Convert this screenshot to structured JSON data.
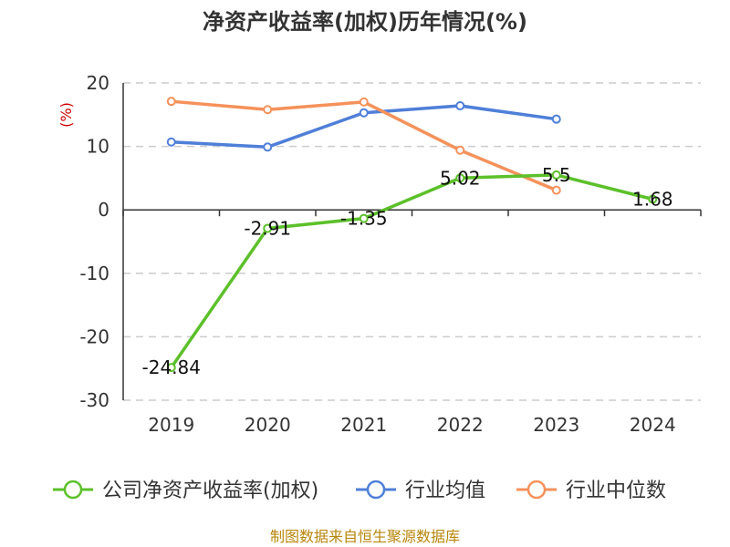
{
  "chart_data": {
    "type": "line",
    "title": "净资产收益率(加权)历年情况(%)",
    "ylabel": "(%)",
    "ylim": [
      -30,
      20
    ],
    "yticks": [
      20,
      10,
      0,
      -10,
      -20,
      -30
    ],
    "categories": [
      "2019",
      "2020",
      "2021",
      "2022",
      "2023",
      "2024"
    ],
    "grid": true,
    "legend_position": "bottom",
    "series": [
      {
        "name": "公司净资产收益率(加权)",
        "color": "#5cc02a",
        "values": [
          -24.84,
          -2.91,
          -1.35,
          5.02,
          5.5,
          1.68
        ],
        "labels": [
          "-24.84",
          "-2.91",
          "-1.35",
          "5.02",
          "5.5",
          "1.68"
        ],
        "show_labels": true
      },
      {
        "name": "行业均值",
        "color": "#4f7fd8",
        "values": [
          10.7,
          9.9,
          15.3,
          16.4,
          14.3,
          null
        ],
        "show_labels": false
      },
      {
        "name": "行业中位数",
        "color": "#f5915a",
        "values": [
          17.1,
          15.8,
          17.0,
          9.4,
          3.1,
          null
        ],
        "show_labels": false
      }
    ],
    "source": "制图数据来自恒生聚源数据库"
  }
}
